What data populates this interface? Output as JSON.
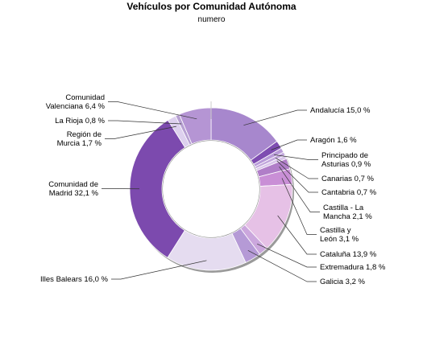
{
  "chart_data": {
    "type": "pie",
    "variant": "donut",
    "title": "Vehículos por Comunidad Autónoma",
    "subtitle": "numero",
    "slices": [
      {
        "name": "Andalucía",
        "label": "Andalucía 15,0 %",
        "value": 15.0,
        "color": "#a787cd"
      },
      {
        "name": "Aragón",
        "label": "Aragón 1,6 %",
        "value": 1.6,
        "color": "#7e4cb1"
      },
      {
        "name": "Principado de Asturias",
        "label": "Principado de Asturias 0,9 %",
        "value": 0.9,
        "color": "#b89ad8"
      },
      {
        "name": "Canarias",
        "label": "Canarias 0,7 %",
        "value": 0.7,
        "color": "#c2a7dc"
      },
      {
        "name": "Cantabria",
        "label": "Cantabria 0,7 %",
        "value": 0.7,
        "color": "#d9c6ea"
      },
      {
        "name": "Castilla - La Mancha",
        "label": "Castilla - La Mancha 2,1 %",
        "value": 2.1,
        "color": "#b07ec8"
      },
      {
        "name": "Castilla y León",
        "label": "Castilla y León 3,1 %",
        "value": 3.1,
        "color": "#c98fd6"
      },
      {
        "name": "Cataluña",
        "label": "Cataluña 13,9 %",
        "value": 13.9,
        "color": "#e6c1e6"
      },
      {
        "name": "Extremadura",
        "label": "Extremadura 1,8 %",
        "value": 1.8,
        "color": "#cba7dd"
      },
      {
        "name": "Galicia",
        "label": "Galicia 3,2 %",
        "value": 3.2,
        "color": "#b59ad6"
      },
      {
        "name": "Illes Balears",
        "label": "Illes Balears 16,0 %",
        "value": 16.0,
        "color": "#e5dcf0"
      },
      {
        "name": "Comunidad de Madrid",
        "label": "Comunidad de Madrid 32,1 %",
        "value": 32.1,
        "color": "#7c4aae"
      },
      {
        "name": "Región de Murcia",
        "label": "Región de Murcia 1,7 %",
        "value": 1.7,
        "color": "#ddd0ee"
      },
      {
        "name": "La Rioja",
        "label": "La Rioja 0,8 %",
        "value": 0.8,
        "color": "#b7a0d2"
      },
      {
        "name": "Comunidad Valenciana",
        "label": "Comunidad Valenciana 6,4 %",
        "value": 6.4,
        "color": "#b595d4"
      }
    ]
  }
}
